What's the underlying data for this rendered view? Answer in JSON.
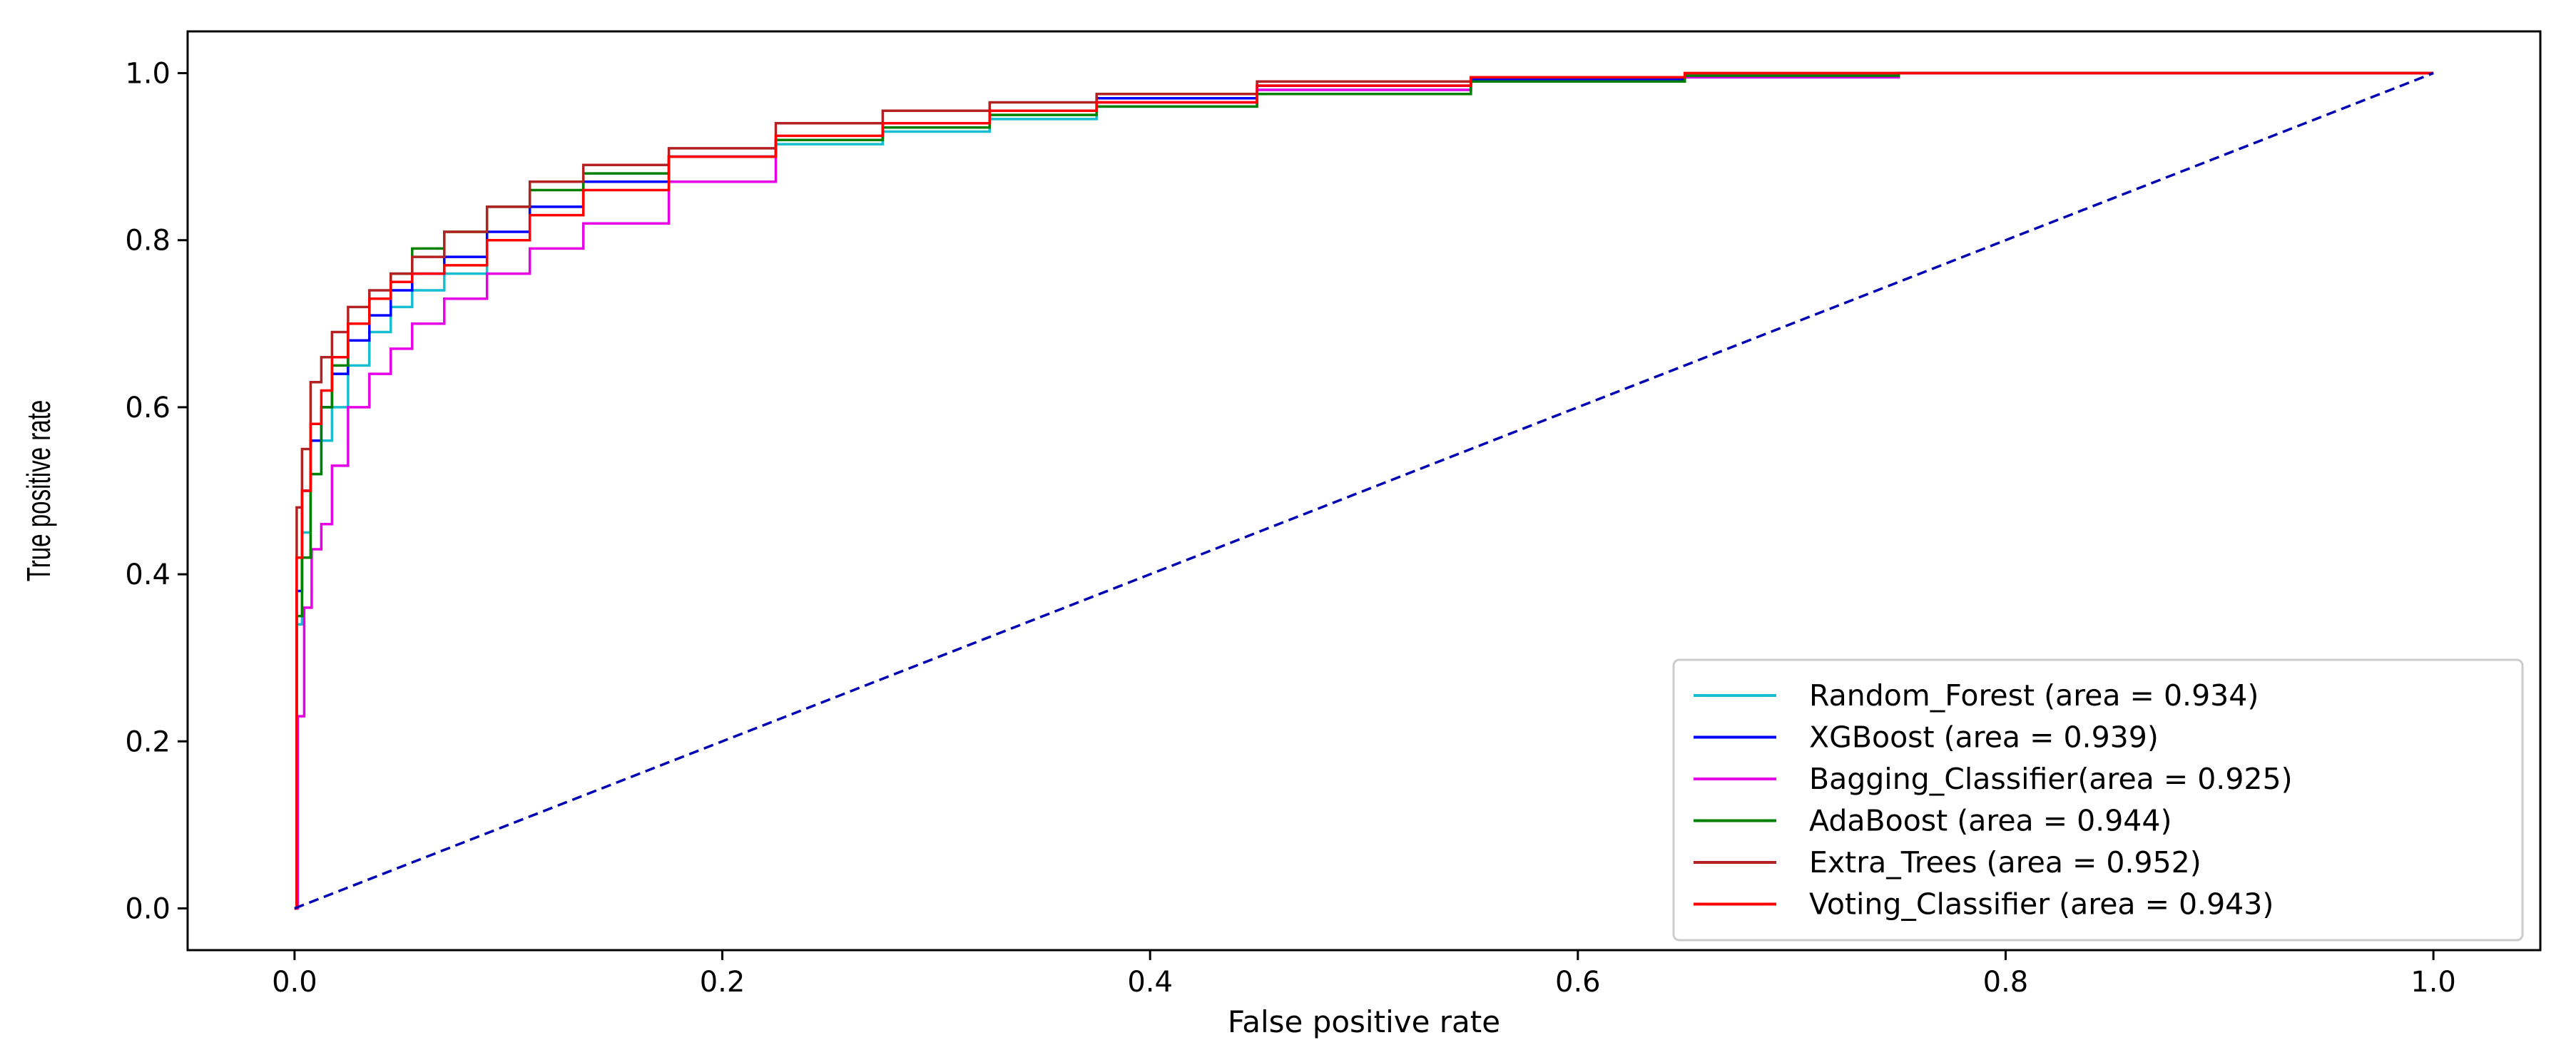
{
  "chart_data": {
    "type": "line",
    "title": "",
    "xlabel": "False positive rate",
    "ylabel": "True positive rate",
    "xlim": [
      -0.05,
      1.05
    ],
    "ylim": [
      -0.05,
      1.05
    ],
    "xticks": [
      0.0,
      0.2,
      0.4,
      0.6,
      0.8,
      1.0
    ],
    "yticks": [
      0.0,
      0.2,
      0.4,
      0.6,
      0.8,
      1.0
    ],
    "xtick_labels": [
      "0.0",
      "0.2",
      "0.4",
      "0.6",
      "0.8",
      "1.0"
    ],
    "ytick_labels": [
      "0.0",
      "0.2",
      "0.4",
      "0.6",
      "0.8",
      "1.0"
    ],
    "grid": false,
    "legend_position": "lower-right",
    "series": [
      {
        "name": "Random_Forest",
        "legend_label": "Random_Forest (area = 0.934)",
        "auc": 0.934,
        "color": "#17becf",
        "x": [
          0,
          0.002,
          0.005,
          0.01,
          0.015,
          0.02,
          0.03,
          0.04,
          0.05,
          0.06,
          0.08,
          0.1,
          0.12,
          0.15,
          0.2,
          0.25,
          0.3,
          0.35,
          0.4,
          0.5,
          0.6,
          0.7,
          0.8,
          1.0
        ],
        "y": [
          0,
          0.34,
          0.45,
          0.52,
          0.56,
          0.6,
          0.65,
          0.69,
          0.72,
          0.74,
          0.76,
          0.8,
          0.84,
          0.87,
          0.9,
          0.915,
          0.93,
          0.945,
          0.96,
          0.98,
          0.99,
          0.995,
          1.0,
          1.0
        ]
      },
      {
        "name": "XGBoost",
        "legend_label": "XGBoost (area = 0.939)",
        "auc": 0.939,
        "color": "#0000ff",
        "x": [
          0,
          0.002,
          0.005,
          0.01,
          0.015,
          0.02,
          0.03,
          0.04,
          0.05,
          0.06,
          0.08,
          0.1,
          0.12,
          0.15,
          0.2,
          0.25,
          0.3,
          0.35,
          0.4,
          0.5,
          0.6,
          0.7,
          0.8,
          1.0
        ],
        "y": [
          0,
          0.38,
          0.5,
          0.56,
          0.6,
          0.64,
          0.68,
          0.71,
          0.74,
          0.76,
          0.78,
          0.81,
          0.84,
          0.87,
          0.9,
          0.92,
          0.94,
          0.955,
          0.97,
          0.985,
          0.993,
          0.997,
          1.0,
          1.0
        ]
      },
      {
        "name": "Bagging_Classifier",
        "legend_label": "Bagging_Classifier(area = 0.925)",
        "auc": 0.925,
        "color": "#e600e6",
        "x": [
          0,
          0.003,
          0.006,
          0.01,
          0.015,
          0.02,
          0.03,
          0.04,
          0.05,
          0.06,
          0.08,
          0.1,
          0.12,
          0.15,
          0.2,
          0.25,
          0.3,
          0.35,
          0.4,
          0.5,
          0.6,
          0.7,
          0.8,
          1.0
        ],
        "y": [
          0,
          0.23,
          0.36,
          0.43,
          0.46,
          0.53,
          0.6,
          0.64,
          0.67,
          0.7,
          0.73,
          0.76,
          0.79,
          0.82,
          0.87,
          0.92,
          0.94,
          0.955,
          0.965,
          0.98,
          0.99,
          0.995,
          1.0,
          1.0
        ]
      },
      {
        "name": "AdaBoost",
        "legend_label": "AdaBoost (area = 0.944)",
        "auc": 0.944,
        "color": "#008000",
        "x": [
          0,
          0.002,
          0.005,
          0.01,
          0.015,
          0.02,
          0.03,
          0.04,
          0.05,
          0.06,
          0.08,
          0.1,
          0.12,
          0.15,
          0.2,
          0.25,
          0.3,
          0.35,
          0.4,
          0.5,
          0.6,
          0.7,
          0.8,
          1.0
        ],
        "y": [
          0,
          0.35,
          0.42,
          0.52,
          0.6,
          0.65,
          0.7,
          0.73,
          0.76,
          0.79,
          0.81,
          0.84,
          0.86,
          0.88,
          0.9,
          0.92,
          0.935,
          0.95,
          0.96,
          0.975,
          0.99,
          0.997,
          1.0,
          1.0
        ]
      },
      {
        "name": "Extra_Trees",
        "legend_label": "Extra_Trees (area = 0.952)",
        "auc": 0.952,
        "color": "#b22222",
        "x": [
          0,
          0.002,
          0.005,
          0.01,
          0.015,
          0.02,
          0.03,
          0.04,
          0.05,
          0.06,
          0.08,
          0.1,
          0.12,
          0.15,
          0.2,
          0.25,
          0.3,
          0.35,
          0.4,
          0.5,
          0.6,
          0.7,
          0.8,
          1.0
        ],
        "y": [
          0,
          0.48,
          0.55,
          0.63,
          0.66,
          0.69,
          0.72,
          0.74,
          0.76,
          0.78,
          0.81,
          0.84,
          0.87,
          0.89,
          0.91,
          0.94,
          0.955,
          0.965,
          0.975,
          0.99,
          0.995,
          1.0,
          1.0,
          1.0
        ]
      },
      {
        "name": "Voting_Classifier",
        "legend_label": "Voting_Classifier (area = 0.943)",
        "auc": 0.943,
        "color": "#ff0000",
        "x": [
          0,
          0.002,
          0.005,
          0.01,
          0.015,
          0.02,
          0.03,
          0.04,
          0.05,
          0.06,
          0.08,
          0.1,
          0.12,
          0.15,
          0.2,
          0.25,
          0.3,
          0.35,
          0.4,
          0.5,
          0.6,
          0.7,
          0.8,
          1.0
        ],
        "y": [
          0,
          0.42,
          0.5,
          0.58,
          0.62,
          0.66,
          0.7,
          0.73,
          0.75,
          0.76,
          0.77,
          0.8,
          0.83,
          0.86,
          0.9,
          0.925,
          0.94,
          0.955,
          0.965,
          0.985,
          0.995,
          1.0,
          1.0,
          1.0
        ]
      }
    ],
    "reference_line": {
      "name": "chance",
      "color": "#0000b4",
      "style": "dashed",
      "x": [
        0,
        1
      ],
      "y": [
        0,
        1
      ]
    }
  }
}
